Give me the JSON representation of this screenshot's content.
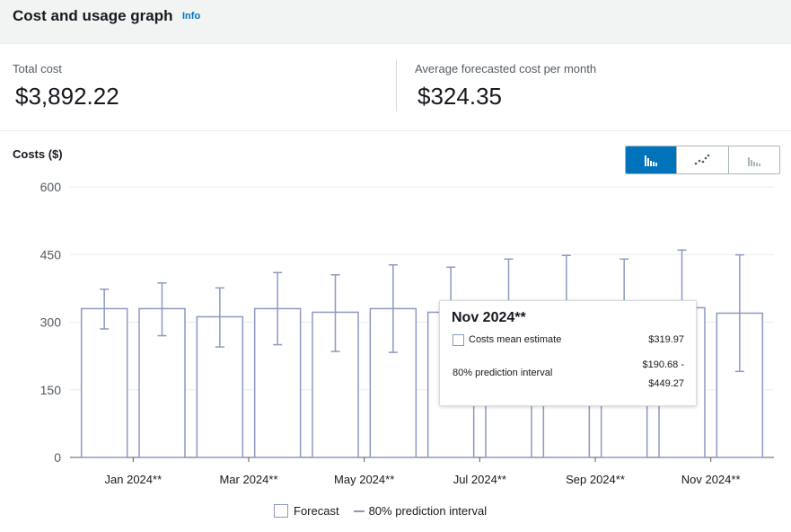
{
  "header": {
    "title": "Cost and usage graph",
    "info_label": "Info"
  },
  "metrics": {
    "total_label": "Total cost",
    "total_value": "$3,892.22",
    "avg_label": "Average forecasted cost per month",
    "avg_value": "$324.35"
  },
  "costs_label": "Costs ($)",
  "view_toggle": {
    "selected": "bar",
    "options": [
      {
        "id": "bar",
        "icon": "bar-chart-icon"
      },
      {
        "id": "line",
        "icon": "line-chart-icon"
      },
      {
        "id": "area",
        "icon": "stacked-area-chart-icon"
      }
    ]
  },
  "colors": {
    "bar_stroke": "#8d99c2",
    "grid": "#e9ebed",
    "accent": "#0073bb"
  },
  "chart_data": {
    "type": "bar",
    "ylim": [
      0,
      600
    ],
    "yticks": [
      "0",
      "150",
      "300",
      "450",
      "600"
    ],
    "xtick_labels": [
      "Jan 2024**",
      "Mar 2024**",
      "May 2024**",
      "Jul 2024**",
      "Sep 2024**",
      "Nov 2024**"
    ],
    "bars": [
      {
        "value": 330,
        "low": 285,
        "high": 373
      },
      {
        "value": 330,
        "low": 270,
        "high": 387
      },
      {
        "value": 312,
        "low": 245,
        "high": 376
      },
      {
        "value": 330,
        "low": 250,
        "high": 410
      },
      {
        "value": 322,
        "low": 235,
        "high": 405
      },
      {
        "value": 330,
        "low": 233,
        "high": 427
      },
      {
        "value": 322,
        "low": 232,
        "high": 422
      },
      {
        "value": 325,
        "low": 225,
        "high": 440
      },
      {
        "value": 328,
        "low": 215,
        "high": 448
      },
      {
        "value": 330,
        "low": 210,
        "high": 440
      },
      {
        "value": 332,
        "low": 205,
        "high": 460
      },
      {
        "value": 319.97,
        "low": 190.68,
        "high": 449.27
      }
    ],
    "legend": [
      "Forecast",
      "80% prediction interval"
    ]
  },
  "tooltip": {
    "title": "Nov 2024**",
    "mean_label": "Costs mean estimate",
    "mean_value": "$319.97",
    "interval_label": "80% prediction interval",
    "interval_low": "$190.68 -",
    "interval_high": "$449.27"
  }
}
